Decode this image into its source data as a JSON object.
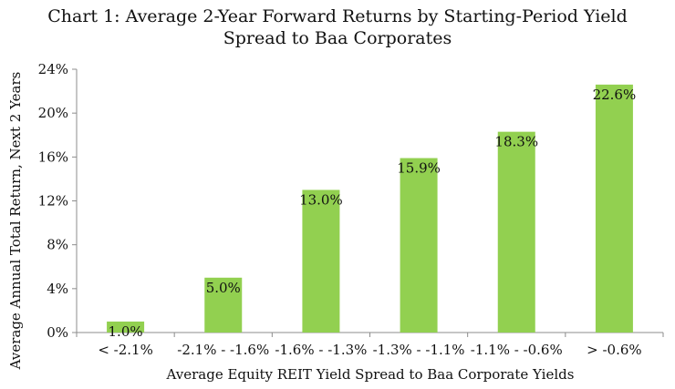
{
  "chart_data": {
    "type": "bar",
    "title_lines": [
      "Chart 1: Average 2-Year Forward Returns by Starting-Period Yield",
      "Spread to Baa Corporates"
    ],
    "xlabel": "Average Equity REIT Yield Spread to Baa Corporate Yields",
    "ylabel": "Average Annual Total Return, Next 2 Years",
    "categories": [
      "< -2.1%",
      "-2.1% - -1.6%",
      "-1.6% - -1.3%",
      "-1.3% - -1.1%",
      "-1.1% - -0.6%",
      "> -0.6%"
    ],
    "values": [
      1.0,
      5.0,
      13.0,
      15.9,
      18.3,
      22.6
    ],
    "data_labels": [
      "1.0%",
      "5.0%",
      "13.0%",
      "15.9%",
      "18.3%",
      "22.6%"
    ],
    "y_ticks": [
      0,
      4,
      8,
      12,
      16,
      20,
      24
    ],
    "y_tick_labels": [
      "0%",
      "4%",
      "8%",
      "12%",
      "16%",
      "20%",
      "24%"
    ],
    "ylim": [
      0,
      24
    ],
    "grid": false,
    "legend": "none",
    "bar_color": "#92d050"
  }
}
